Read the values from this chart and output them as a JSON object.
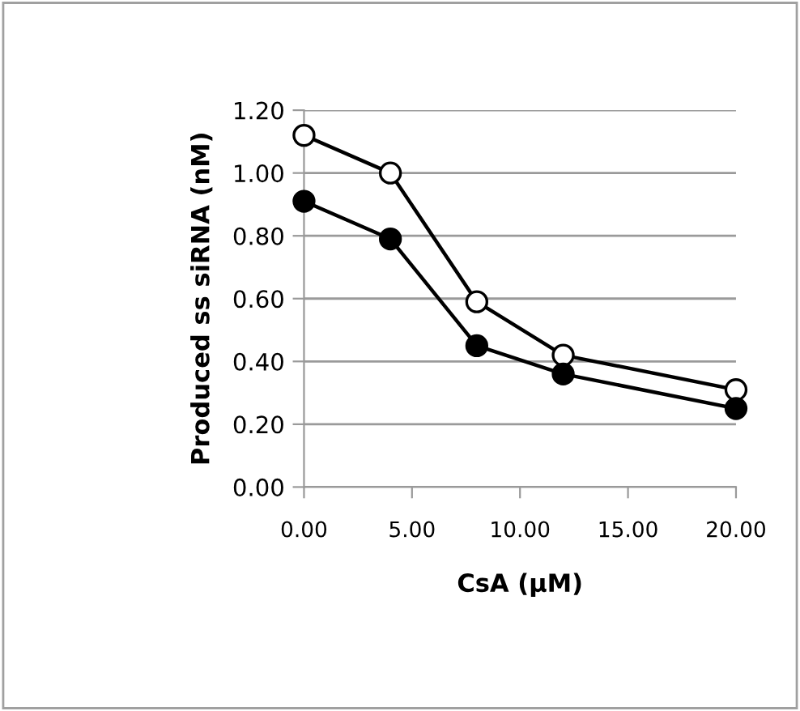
{
  "chart_data": {
    "type": "line",
    "xlabel": "CsA (μM)",
    "ylabel": "Produced ss siRNA (nM)",
    "series": [
      {
        "color": "#ffffff",
        "marker": "circle",
        "x": [
          0,
          4,
          8,
          12,
          20
        ],
        "values": [
          1.12,
          1.0,
          0.59,
          0.42,
          0.31
        ]
      },
      {
        "color": "#000000",
        "marker": "circle",
        "x": [
          0,
          4,
          8,
          12,
          20
        ],
        "values": [
          0.91,
          0.79,
          0.45,
          0.36,
          0.25
        ]
      }
    ],
    "xlim": [
      0,
      20
    ],
    "xticks": [
      {
        "value": 0,
        "label": "0.00"
      },
      {
        "value": 5,
        "label": "5.00"
      },
      {
        "value": 10,
        "label": "10.00"
      },
      {
        "value": 15,
        "label": "15.00"
      },
      {
        "value": 20,
        "label": "20.00"
      }
    ],
    "ylim": [
      0,
      1.2
    ],
    "yticks": [
      {
        "value": 0,
        "label": "0.00"
      },
      {
        "value": 0.2,
        "label": "0.20"
      },
      {
        "value": 0.4,
        "label": "0.40"
      },
      {
        "value": 0.6,
        "label": "0.60"
      },
      {
        "value": 0.8,
        "label": "0.80"
      },
      {
        "value": 1.0,
        "label": "1.00"
      },
      {
        "value": 1.2,
        "label": "1.20"
      }
    ],
    "grid": "y",
    "legend": false,
    "line_style": "solid"
  }
}
